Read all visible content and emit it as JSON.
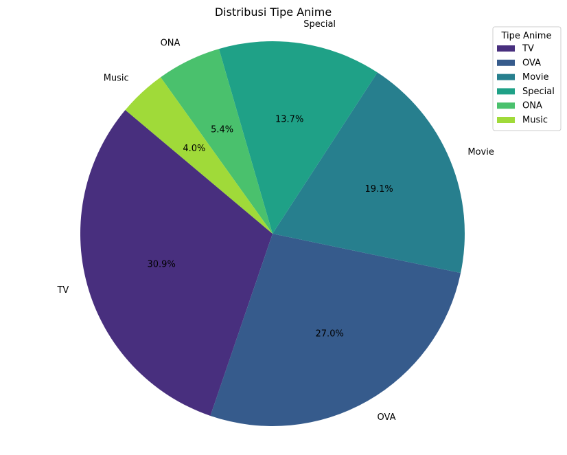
{
  "chart_data": {
    "type": "pie",
    "title": "Distribusi Tipe Anime",
    "legend_title": "Tipe Anime",
    "legend_placement": "top-right",
    "start_angle_deg": 140,
    "direction": "counterclockwise",
    "slices": [
      {
        "label": "TV",
        "value": 30.9,
        "pct_label": "30.9%",
        "color": "#482f7e"
      },
      {
        "label": "OVA",
        "value": 27.0,
        "pct_label": "27.0%",
        "color": "#365b8c"
      },
      {
        "label": "Movie",
        "value": 19.1,
        "pct_label": "19.1%",
        "color": "#277f8e"
      },
      {
        "label": "Special",
        "value": 13.7,
        "pct_label": "13.7%",
        "color": "#1fa187"
      },
      {
        "label": "ONA",
        "value": 5.4,
        "pct_label": "5.4%",
        "color": "#4ac16d"
      },
      {
        "label": "Music",
        "value": 4.0,
        "pct_label": "4.0%",
        "color": "#a0da39"
      }
    ]
  }
}
